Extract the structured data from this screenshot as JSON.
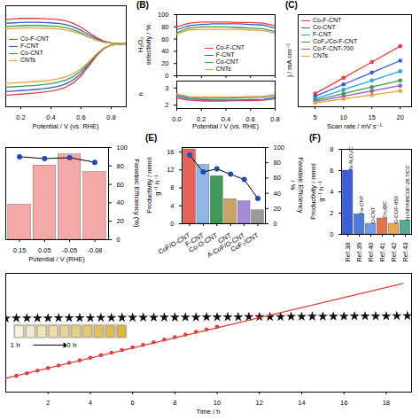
{
  "chart_data": [
    {
      "type": "line",
      "xlabel": "Potential / V (vs. RHE)",
      "x": [
        0.1,
        0.15,
        0.2,
        0.25,
        0.3,
        0.35,
        0.4,
        0.45,
        0.5,
        0.55,
        0.6,
        0.65,
        0.7,
        0.75,
        0.8,
        0.85,
        0.9
      ],
      "xlim": [
        0.1,
        0.9
      ],
      "xticks": [
        0.2,
        0.4,
        0.6,
        0.8
      ],
      "ylim": [
        -5,
        3
      ],
      "tick_labels": "x",
      "legend": "center left",
      "series": [
        {
          "name": "Co-F-CNT",
          "color": "#e2403b",
          "values": [
            1.9,
            1.95,
            2.0,
            2.0,
            2.0,
            1.98,
            1.95,
            1.9,
            1.8,
            1.6,
            1.3,
            0.9,
            0.5,
            0.2,
            0.06,
            0.02,
            0.0
          ],
          "disk": [
            -4.1,
            -4.05,
            -4.0,
            -3.95,
            -3.9,
            -3.84,
            -3.76,
            -3.64,
            -3.44,
            -3.1,
            -2.55,
            -1.8,
            -1.0,
            -0.4,
            -0.12,
            -0.04,
            -0.02
          ]
        },
        {
          "name": "F-CNT",
          "color": "#3a57d6",
          "values": [
            1.6,
            1.65,
            1.68,
            1.7,
            1.7,
            1.68,
            1.65,
            1.6,
            1.5,
            1.32,
            1.05,
            0.72,
            0.4,
            0.16,
            0.05,
            0.01,
            0.0
          ],
          "disk": [
            -3.8,
            -3.76,
            -3.72,
            -3.68,
            -3.63,
            -3.57,
            -3.49,
            -3.37,
            -3.18,
            -2.86,
            -2.36,
            -1.68,
            -0.94,
            -0.38,
            -0.12,
            -0.04,
            -0.02
          ]
        },
        {
          "name": "Co-CNT",
          "color": "#39a04b",
          "values": [
            1.35,
            1.4,
            1.42,
            1.44,
            1.44,
            1.42,
            1.4,
            1.36,
            1.26,
            1.1,
            0.85,
            0.56,
            0.3,
            0.12,
            0.04,
            0.01,
            0.0
          ],
          "disk": [
            -3.45,
            -3.42,
            -3.38,
            -3.34,
            -3.3,
            -3.24,
            -3.16,
            -3.05,
            -2.88,
            -2.6,
            -2.16,
            -1.56,
            -0.88,
            -0.36,
            -0.11,
            -0.04,
            -0.02
          ]
        },
        {
          "name": "CNTs",
          "color": "#e8a23a",
          "values": [
            1.15,
            1.2,
            1.22,
            1.24,
            1.24,
            1.22,
            1.2,
            1.16,
            1.08,
            0.95,
            0.76,
            0.52,
            0.28,
            0.11,
            0.03,
            0.01,
            0.0
          ],
          "disk": [
            -3.15,
            -3.12,
            -3.08,
            -3.04,
            -3.0,
            -2.95,
            -2.88,
            -2.78,
            -2.62,
            -2.38,
            -2.0,
            -1.46,
            -0.84,
            -0.35,
            -0.11,
            -0.04,
            -0.02
          ]
        }
      ]
    },
    {
      "type": "line",
      "panel": "(B)",
      "ylabel": "H₂O₂ selectivity / %",
      "x": [
        0,
        0.1,
        0.2,
        0.3,
        0.4,
        0.5,
        0.6,
        0.7,
        0.8
      ],
      "xlim": [
        0,
        0.8
      ],
      "xticks": [
        {
          "value": 0,
          "label": "0.0"
        },
        0.2,
        0.4,
        0.6,
        0.8
      ],
      "ylim": [
        0,
        100
      ],
      "yticks": [
        0,
        20,
        40,
        60,
        80,
        100
      ],
      "tick_labels": "y",
      "legend": "lower center",
      "series": [
        {
          "name": "Co-F-CNT",
          "color": "#e2403b",
          "values": [
            80,
            86,
            88,
            88,
            88,
            87,
            87,
            86,
            82
          ]
        },
        {
          "name": "F-CNT",
          "color": "#3a57d6",
          "values": [
            75,
            82,
            84,
            85,
            85,
            85,
            84,
            83,
            78
          ]
        },
        {
          "name": "Co-CNT",
          "color": "#39a04b",
          "values": [
            70,
            78,
            80,
            80,
            80,
            79,
            78,
            77,
            72
          ]
        },
        {
          "name": "CNTs",
          "color": "#e8a23a",
          "values": [
            68,
            75,
            76,
            76,
            76,
            76,
            75,
            74,
            70
          ]
        }
      ]
    },
    {
      "type": "line",
      "ylabel": "n",
      "xlabel": "Potential / V (vs. RHE)",
      "x": [
        0,
        0.1,
        0.2,
        0.3,
        0.4,
        0.5,
        0.6,
        0.7,
        0.8
      ],
      "xlim": [
        0,
        0.8
      ],
      "xticks": [
        {
          "value": 0,
          "label": "0.0"
        },
        0.2,
        0.4,
        0.6,
        0.8
      ],
      "ylim": [
        1.8,
        3.4
      ],
      "yticks": [
        2,
        3
      ],
      "series": [
        {
          "color": "#e2403b",
          "values": [
            2.4,
            2.28,
            2.24,
            2.24,
            2.24,
            2.26,
            2.26,
            2.28,
            2.36
          ]
        },
        {
          "color": "#3a57d6",
          "values": [
            2.5,
            2.36,
            2.32,
            2.3,
            2.3,
            2.3,
            2.32,
            2.34,
            2.44
          ]
        },
        {
          "color": "#39a04b",
          "values": [
            2.6,
            2.44,
            2.4,
            2.4,
            2.4,
            2.42,
            2.44,
            2.46,
            2.56
          ]
        },
        {
          "color": "#e8a23a",
          "values": [
            2.64,
            2.5,
            2.48,
            2.48,
            2.48,
            2.48,
            2.5,
            2.52,
            2.6
          ]
        }
      ]
    },
    {
      "type": "line",
      "panel": "(C)",
      "marker": "circle",
      "xlabel": "Scan rate / mV s⁻¹",
      "ylabel": "j / mA cm⁻²",
      "x": [
        5,
        10,
        15,
        20
      ],
      "xlim": [
        2,
        22
      ],
      "xticks": [
        5,
        10,
        15,
        20
      ],
      "ylim": [
        0,
        0.7
      ],
      "tick_labels": "x",
      "legend": "upper left",
      "series": [
        {
          "name": "Co-F-CNT",
          "color": "#e2403b",
          "values": [
            0.1,
            0.22,
            0.34,
            0.46
          ]
        },
        {
          "name": "Co-CNT",
          "color": "#3a57d6",
          "values": [
            0.08,
            0.17,
            0.26,
            0.35
          ]
        },
        {
          "name": "F-CNT",
          "color": "#2aa4d8",
          "values": [
            0.06,
            0.13,
            0.2,
            0.27
          ]
        },
        {
          "name": "CoF₂/Co-F-CNT",
          "color": "#39a04b",
          "values": [
            0.05,
            0.1,
            0.15,
            0.2
          ]
        },
        {
          "name": "Co-F-CNT-700",
          "color": "#9a55c2",
          "values": [
            0.04,
            0.08,
            0.12,
            0.16
          ]
        },
        {
          "name": "CNTs",
          "color": "#e8a23a",
          "values": [
            0.03,
            0.06,
            0.09,
            0.12
          ]
        }
      ]
    },
    {
      "type": "bar",
      "xlabel": "Potential / V (RHE)",
      "categories": [
        "0.15",
        "0.05",
        "-0.05",
        "-0.08"
      ],
      "values": [
        7.6,
        16.1,
        18.5,
        14.7
      ],
      "color": "#f4a9a8",
      "ylim": [
        0,
        20
      ],
      "tick_labels": "x",
      "y2label": "Faradaic Efficiency (%)",
      "y2lim": [
        0,
        100
      ],
      "y2ticks": [
        0,
        20,
        40,
        60,
        80,
        100
      ],
      "series": [
        {
          "axis": "y2",
          "color": "#2b45b0",
          "marker": "circle",
          "values": [
            90,
            88,
            89,
            84
          ]
        }
      ]
    },
    {
      "type": "bar",
      "panel": "(E)",
      "ylabel": "Productivity / mmol g⁻¹ h⁻¹",
      "categories": [
        "CoF/O-CNT",
        "F-CNT",
        "Co-O-CNT",
        "CNT",
        "A-CoF/O-CNT",
        "CoF₂/CNT"
      ],
      "values": [
        16.6,
        13.1,
        10.6,
        5.5,
        5.0,
        3.0
      ],
      "colors": [
        "#e8605a",
        "#8fb8e8",
        "#3f9a5a",
        "#c9a466",
        "#a58ad6",
        "#9a9a9a"
      ],
      "ylim": [
        0,
        17
      ],
      "yticks": [
        0,
        4,
        8,
        12,
        16
      ],
      "y2label": "Faradaic Efficiency / %",
      "y2lim": [
        0,
        100
      ],
      "y2ticks": [
        0,
        20,
        40,
        60,
        80,
        100
      ],
      "series": [
        {
          "axis": "y2",
          "color": "#2b45b0",
          "marker": "circle",
          "values": [
            90,
            68,
            72,
            65,
            58,
            33
          ]
        }
      ]
    },
    {
      "type": "bar",
      "panel": "(F)",
      "ylabel": "Productivity / mmol g⁻¹ h⁻¹",
      "categories": [
        "Ref.38",
        "Ref.39",
        "Ref.40",
        "Ref.41",
        "Ref.42",
        "Ref.43"
      ],
      "values": [
        6.0,
        1.9,
        1.0,
        1.5,
        1.0,
        1.3
      ],
      "colors": [
        "#3a5fd6",
        "#4a7be0",
        "#6d9be8",
        "#e0774f",
        "#e7a84e",
        "#57aa9a"
      ],
      "bar_labels": [
        "Ni-N₂O₂/C",
        "Fe-CNT",
        "O-CNT",
        "Zn₅@C",
        "G-COF-950",
        "Ni-NP/NBCOF-28.7/CC"
      ],
      "ylim": [
        0,
        8
      ],
      "yticks": [
        0,
        2,
        4,
        6,
        8
      ]
    },
    {
      "type": "line",
      "xlabel": "Time / h",
      "xlim": [
        0,
        19.2
      ],
      "xticks": [
        2,
        4,
        6,
        8,
        10,
        12,
        14,
        16,
        18
      ],
      "ylim": [
        0,
        95
      ],
      "tick_labels": "x",
      "annotations": [
        "1 h",
        "10 h"
      ],
      "series": [
        {
          "color": "#111111",
          "marker": "star",
          "line_style": "none",
          "x": [
            0,
            0.5,
            1,
            1.5,
            2,
            2.5,
            3,
            3.5,
            4,
            4.5,
            5,
            5.5,
            6,
            6.5,
            7,
            7.5,
            8,
            8.5,
            9,
            9.5,
            10,
            10.5,
            11,
            11.5,
            12,
            12.5,
            13,
            13.5,
            14,
            14.5,
            15,
            15.5,
            16,
            16.5,
            17,
            17.5,
            18,
            18.5,
            19
          ],
          "values": [
            59.0,
            59.1,
            59.1,
            59.2,
            59.2,
            59.3,
            59.3,
            59.4,
            59.4,
            59.5,
            59.5,
            59.6,
            59.6,
            59.7,
            59.7,
            59.8,
            59.8,
            59.9,
            59.9,
            60.0,
            60.0,
            60.1,
            60.1,
            60.2,
            60.2,
            60.3,
            60.3,
            60.4,
            60.4,
            60.5,
            60.5,
            60.6,
            60.6,
            60.7,
            60.7,
            60.8,
            60.8,
            60.9,
            61.0
          ]
        },
        {
          "color": "#e2403b",
          "marker": "circle",
          "line_style": "none",
          "x": [
            0.5,
            1,
            1.5,
            2,
            2.5,
            3,
            3.5,
            4,
            4.5,
            5,
            5.5,
            6,
            6.5,
            7,
            7.5,
            8,
            8.5,
            9,
            9.5,
            10
          ],
          "values": [
            13,
            15.1,
            17.2,
            19.2,
            21.3,
            23.4,
            25.4,
            27.5,
            29.6,
            31.6,
            33.7,
            35.8,
            37.8,
            39.9,
            42,
            44,
            46.1,
            48.2,
            50.2,
            52.3
          ]
        },
        {
          "color": "#e2403b",
          "line_style": "solid",
          "x": [
            0,
            18.8
          ],
          "values": [
            11,
            87
          ]
        }
      ]
    }
  ]
}
